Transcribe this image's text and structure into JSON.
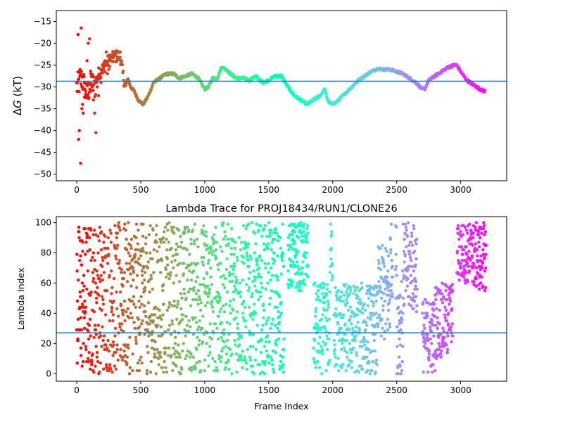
{
  "chart_data": [
    {
      "type": "scatter",
      "title": "",
      "xlabel": "",
      "ylabel": "ΔG (kT)",
      "ylabel_parts": [
        "Δ",
        "G",
        " (kT)"
      ],
      "xlim": [
        -160,
        3360
      ],
      "ylim": [
        -51.5,
        -12.5
      ],
      "xticks": [
        0,
        500,
        1000,
        1500,
        2000,
        2500,
        3000
      ],
      "yticks": [
        -15,
        -20,
        -25,
        -30,
        -35,
        -40,
        -45,
        -50
      ],
      "hline": -28.7,
      "hline_color": "#1f77b4",
      "colormap": "rainbow",
      "grid": false,
      "trace_anchors": [
        [
          0,
          -30
        ],
        [
          40,
          -28
        ],
        [
          80,
          -32
        ],
        [
          110,
          -29
        ],
        [
          140,
          -30
        ],
        [
          170,
          -27
        ],
        [
          200,
          -26
        ],
        [
          250,
          -24
        ],
        [
          300,
          -23
        ],
        [
          340,
          -23
        ],
        [
          360,
          -27
        ],
        [
          380,
          -30
        ],
        [
          400,
          -28
        ],
        [
          420,
          -30
        ],
        [
          450,
          -31
        ],
        [
          480,
          -33
        ],
        [
          520,
          -34
        ],
        [
          560,
          -32
        ],
        [
          600,
          -29
        ],
        [
          650,
          -28
        ],
        [
          700,
          -27
        ],
        [
          760,
          -27
        ],
        [
          800,
          -28
        ],
        [
          850,
          -27.5
        ],
        [
          900,
          -27
        ],
        [
          950,
          -28
        ],
        [
          1000,
          -30.5
        ],
        [
          1030,
          -30
        ],
        [
          1060,
          -28
        ],
        [
          1100,
          -28
        ],
        [
          1130,
          -25.5
        ],
        [
          1170,
          -26
        ],
        [
          1200,
          -27
        ],
        [
          1250,
          -28
        ],
        [
          1300,
          -28
        ],
        [
          1350,
          -28.5
        ],
        [
          1400,
          -27.5
        ],
        [
          1450,
          -29
        ],
        [
          1500,
          -28.5
        ],
        [
          1550,
          -27.5
        ],
        [
          1600,
          -27.5
        ],
        [
          1650,
          -30
        ],
        [
          1700,
          -32
        ],
        [
          1750,
          -33
        ],
        [
          1800,
          -34
        ],
        [
          1850,
          -33
        ],
        [
          1900,
          -32
        ],
        [
          1940,
          -30.5
        ],
        [
          1960,
          -33
        ],
        [
          1990,
          -34
        ],
        [
          2030,
          -33.5
        ],
        [
          2080,
          -32
        ],
        [
          2150,
          -30
        ],
        [
          2200,
          -28.5
        ],
        [
          2250,
          -27.5
        ],
        [
          2300,
          -26.5
        ],
        [
          2350,
          -25.8
        ],
        [
          2400,
          -26
        ],
        [
          2450,
          -26
        ],
        [
          2500,
          -26.5
        ],
        [
          2550,
          -27
        ],
        [
          2600,
          -28
        ],
        [
          2650,
          -29
        ],
        [
          2700,
          -30.5
        ],
        [
          2720,
          -30.5
        ],
        [
          2750,
          -28.5
        ],
        [
          2800,
          -27.5
        ],
        [
          2850,
          -26.5
        ],
        [
          2900,
          -25.5
        ],
        [
          2950,
          -25
        ],
        [
          2970,
          -25
        ],
        [
          3000,
          -26.5
        ],
        [
          3050,
          -28.5
        ],
        [
          3100,
          -29.5
        ],
        [
          3150,
          -30.5
        ],
        [
          3190,
          -31
        ]
      ],
      "early_scatter": [
        [
          10,
          -18
        ],
        [
          15,
          -42
        ],
        [
          20,
          -40
        ],
        [
          30,
          -47.5
        ],
        [
          35,
          -16.5
        ],
        [
          25,
          -26
        ],
        [
          40,
          -35
        ],
        [
          45,
          -34
        ],
        [
          50,
          -36
        ],
        [
          60,
          -29
        ],
        [
          70,
          -31
        ],
        [
          80,
          -24
        ],
        [
          90,
          -20
        ],
        [
          100,
          -19
        ],
        [
          110,
          -27
        ],
        [
          120,
          -30
        ],
        [
          130,
          -33
        ],
        [
          140,
          -36
        ],
        [
          150,
          -40.5
        ],
        [
          160,
          -30
        ],
        [
          170,
          -32
        ],
        [
          180,
          -28
        ],
        [
          190,
          -29
        ],
        [
          200,
          -25
        ],
        [
          210,
          -26
        ],
        [
          220,
          -24
        ],
        [
          230,
          -22
        ],
        [
          240,
          -27
        ],
        [
          250,
          -26
        ],
        [
          300,
          -22
        ],
        [
          340,
          -22
        ]
      ]
    },
    {
      "type": "scatter",
      "title": "Lambda Trace for PROJ18434/RUN1/CLONE26",
      "xlabel": "Frame Index",
      "ylabel": "Lambda Index",
      "xlim": [
        -160,
        3360
      ],
      "ylim": [
        -5,
        104
      ],
      "xticks": [
        0,
        500,
        1000,
        1500,
        2000,
        2500,
        3000
      ],
      "yticks": [
        0,
        20,
        40,
        60,
        80,
        100
      ],
      "hline": 27,
      "hline_color": "#1f77b4",
      "colormap": "rainbow",
      "grid": false,
      "frames": 3200,
      "lambda_profile": [
        [
          0,
          0,
          100
        ],
        [
          500,
          0,
          100
        ],
        [
          1000,
          0,
          100
        ],
        [
          1300,
          0,
          100
        ],
        [
          1400,
          0,
          100
        ],
        [
          1600,
          0,
          100
        ],
        [
          1650,
          55,
          100
        ],
        [
          1800,
          55,
          100
        ],
        [
          1850,
          0,
          60
        ],
        [
          1950,
          0,
          60
        ],
        [
          1980,
          60,
          100
        ],
        [
          2010,
          0,
          60
        ],
        [
          2250,
          0,
          60
        ],
        [
          2350,
          20,
          85
        ],
        [
          2450,
          50,
          100
        ],
        [
          2500,
          0,
          70
        ],
        [
          2550,
          40,
          100
        ],
        [
          2650,
          40,
          100
        ],
        [
          2700,
          0,
          50
        ],
        [
          2800,
          10,
          60
        ],
        [
          2900,
          20,
          60
        ],
        [
          2970,
          60,
          100
        ],
        [
          3100,
          55,
          100
        ],
        [
          3200,
          55,
          100
        ]
      ],
      "gaps": [
        [
          1620,
          1650
        ],
        [
          1810,
          1850
        ],
        [
          2000,
          2010
        ],
        [
          2470,
          2490
        ],
        [
          2660,
          2700
        ],
        [
          2940,
          2970
        ]
      ]
    }
  ]
}
